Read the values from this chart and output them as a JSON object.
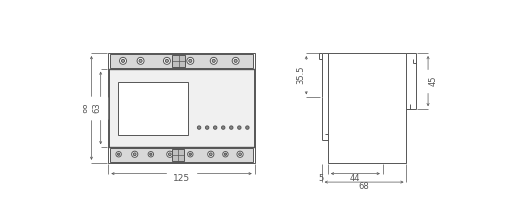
{
  "fig_width": 5.3,
  "fig_height": 2.24,
  "dpi": 100,
  "bg_color": "#ffffff",
  "lc": "#555555",
  "dc": "#555555",
  "gray_fill": "#e0e0e0",
  "dark_gray": "#aaaaaa",
  "annotations": {
    "dim_88": "88",
    "dim_63": "63",
    "dim_125": "125",
    "dim_35_5": "35.5",
    "dim_45": "45",
    "dim_44": "44",
    "dim_5": "5",
    "dim_68": "68"
  }
}
